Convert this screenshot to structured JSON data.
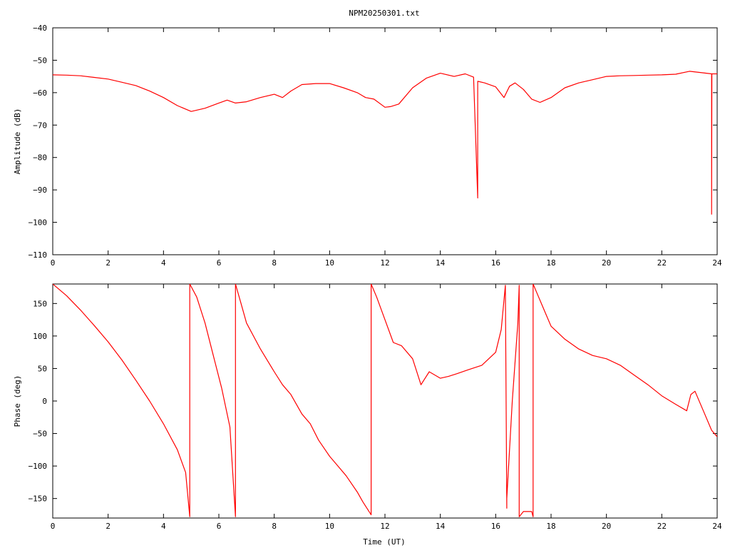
{
  "title": "NPM20250301.txt",
  "chart_data": [
    {
      "type": "line",
      "title": "NPM20250301.txt",
      "xlabel": "",
      "ylabel": "Amplitude (dB)",
      "xlim": [
        0,
        24
      ],
      "ylim": [
        -110,
        -40
      ],
      "xticks": [
        0,
        2,
        4,
        6,
        8,
        10,
        12,
        14,
        16,
        18,
        20,
        22,
        24
      ],
      "xticklabels": [
        "0",
        "2",
        "4",
        "6",
        "8",
        "10",
        "12",
        "14",
        "16",
        "18",
        "20",
        "22",
        "24"
      ],
      "yticks": [
        -110,
        -100,
        -90,
        -80,
        -70,
        -60,
        -50,
        -40
      ],
      "yticklabels": [
        "−110",
        "−100",
        "−90",
        "−80",
        "−70",
        "−60",
        "−50",
        "−40"
      ],
      "grid": false,
      "color": "#ff0000",
      "series": [
        {
          "x": [
            0,
            0.5,
            1,
            1.5,
            2,
            2.5,
            3,
            3.5,
            4,
            4.5,
            5,
            5.5,
            6,
            6.3,
            6.6,
            7,
            7.5,
            8,
            8.3,
            8.6,
            9,
            9.5,
            10,
            10.5,
            11,
            11.3,
            11.6,
            12,
            12.2,
            12.5,
            13,
            13.5,
            14,
            14.5,
            14.9,
            15.2,
            15.35,
            15.35,
            15.36,
            15.6,
            16,
            16.3,
            16.5,
            16.7,
            17,
            17.3,
            17.6,
            18,
            18.5,
            19,
            19.5,
            20,
            20.5,
            21,
            21.5,
            22,
            22.5,
            23,
            23.5,
            23.8,
            23.8,
            23.81,
            24
          ],
          "y": [
            -54.5,
            -54.6,
            -54.8,
            -55.3,
            -55.8,
            -56.8,
            -57.8,
            -59.5,
            -61.5,
            -64,
            -65.8,
            -64.8,
            -63.2,
            -62.3,
            -63.2,
            -62.8,
            -61.5,
            -60.5,
            -61.5,
            -59.5,
            -57.5,
            -57.2,
            -57.2,
            -58.5,
            -60,
            -61.5,
            -62,
            -64.5,
            -64.3,
            -63.5,
            -58.5,
            -55.5,
            -54,
            -55,
            -54.2,
            -55.2,
            -92.5,
            -56.5,
            -56.5,
            -57,
            -58.2,
            -61.5,
            -58,
            -57,
            -59,
            -62,
            -63,
            -61.5,
            -58.5,
            -57,
            -56,
            -55,
            -54.8,
            -54.7,
            -54.6,
            -54.5,
            -54.3,
            -53.4,
            -53.9,
            -54.2,
            -97.5,
            -54.2,
            -54.2
          ]
        }
      ]
    },
    {
      "type": "line",
      "xlabel": "Time (UT)",
      "ylabel": "Phase (deg)",
      "xlim": [
        0,
        24
      ],
      "ylim": [
        -180,
        180
      ],
      "xticks": [
        0,
        2,
        4,
        6,
        8,
        10,
        12,
        14,
        16,
        18,
        20,
        22,
        24
      ],
      "xticklabels": [
        "0",
        "2",
        "4",
        "6",
        "8",
        "10",
        "12",
        "14",
        "16",
        "18",
        "20",
        "22",
        "24"
      ],
      "yticks": [
        -150,
        -100,
        -50,
        0,
        50,
        100,
        150
      ],
      "yticklabels": [
        "−150",
        "−100",
        "−50",
        "0",
        "50",
        "100",
        "150"
      ],
      "grid": false,
      "color": "#ff0000",
      "series": [
        {
          "x": [
            0,
            0.5,
            1,
            1.5,
            2,
            2.5,
            3,
            3.5,
            4,
            4.5,
            4.8,
            4.95,
            4.95,
            5.2,
            5.5,
            5.8,
            6.1,
            6.4,
            6.6,
            6.6,
            6.8,
            7,
            7.5,
            8,
            8.3,
            8.6,
            9,
            9.3,
            9.6,
            10,
            10.3,
            10.6,
            11,
            11.2,
            11.5,
            11.5,
            11.7,
            12,
            12.3,
            12.6,
            13,
            13.3,
            13.6,
            14,
            14.3,
            14.6,
            15,
            15.5,
            16,
            16.2,
            16.35,
            16.4,
            16.4,
            16.6,
            16.8,
            16.85,
            16.85,
            17,
            17.3,
            17.35,
            17.35,
            17.5,
            17.8,
            18,
            18.5,
            19,
            19.5,
            20,
            20.5,
            21,
            21.5,
            22,
            22.5,
            22.9,
            23.05,
            23.2,
            23.5,
            23.8,
            24
          ],
          "y": [
            180,
            162,
            140,
            116,
            91,
            63,
            32,
            0,
            -35,
            -75,
            -110,
            -178,
            180,
            160,
            120,
            70,
            20,
            -40,
            -178,
            180,
            150,
            120,
            80,
            45,
            25,
            10,
            -20,
            -35,
            -60,
            -85,
            -100,
            -115,
            -140,
            -155,
            -175,
            180,
            160,
            125,
            90,
            85,
            65,
            25,
            45,
            35,
            38,
            42,
            48,
            55,
            75,
            110,
            178,
            -165,
            -150,
            0,
            120,
            178,
            -178,
            -170,
            -170,
            -178,
            180,
            165,
            135,
            115,
            95,
            80,
            70,
            65,
            55,
            40,
            25,
            8,
            -5,
            -15,
            10,
            15,
            -15,
            -45,
            -55
          ]
        }
      ]
    }
  ]
}
